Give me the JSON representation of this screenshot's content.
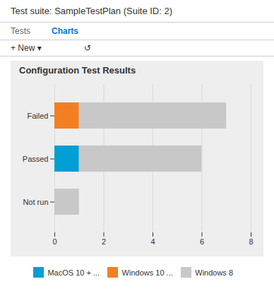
{
  "chart_data": {
    "type": "bar",
    "title": "Configuration Test Results",
    "annotations": [
      "Test suite: SampleTestPlan (Suite ID: 2)",
      "Tests",
      "Charts",
      "+ New ▾",
      "↺"
    ],
    "categories": [
      "Not run",
      "Passed",
      "Failed"
    ],
    "series": [
      {
        "name": "MacOS 10 + ...",
        "color": "#009FD4",
        "values": [
          0,
          1,
          0
        ]
      },
      {
        "name": "Windows 10 ...",
        "color": "#F28022",
        "values": [
          0,
          0,
          1
        ]
      },
      {
        "name": "Windows 8",
        "color": "#C8C8C8",
        "values": [
          1,
          5,
          6
        ]
      }
    ],
    "orientation": "horizontal",
    "stacked": true,
    "xlim": [
      0,
      8
    ],
    "xticks": [
      0,
      2,
      4,
      6,
      8
    ],
    "grid": true,
    "legend": "bottom"
  }
}
